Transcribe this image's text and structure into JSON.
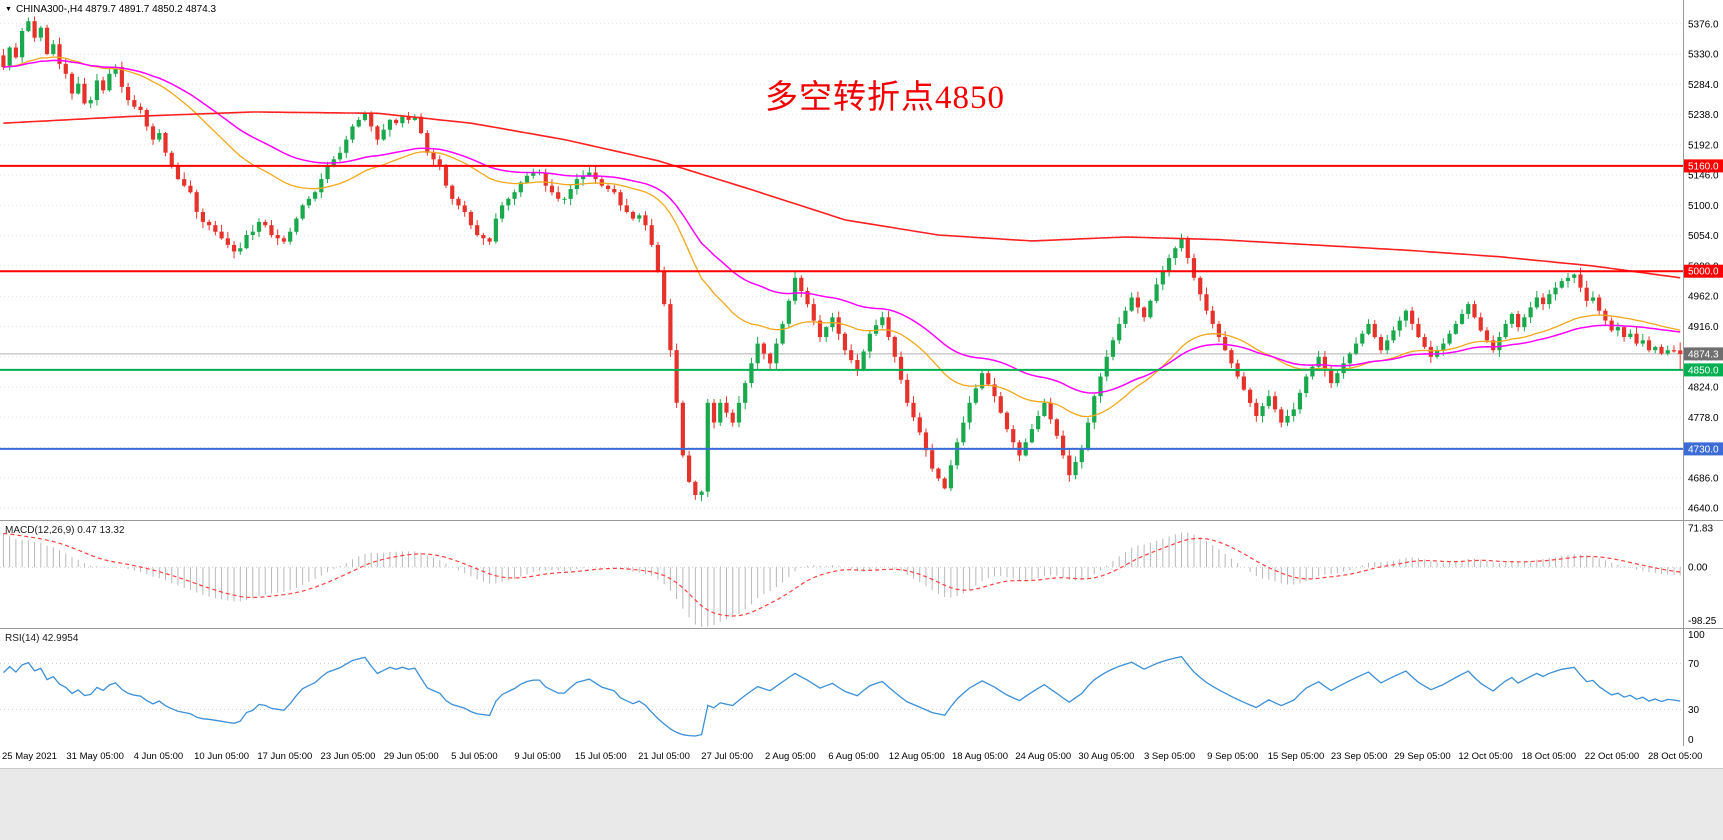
{
  "header": {
    "collapse_icon": "▼",
    "symbol_line": "CHINA300-,H4 4879.7 4891.7 4850.2 4874.3"
  },
  "annotation": {
    "text": "多空转折点4850",
    "color": "#f20000"
  },
  "colors": {
    "up": "#19a84c",
    "down": "#e5332b",
    "grid": "#e2e2e2",
    "panel_border": "#999999",
    "axis_text": "#000000",
    "current_line": "#b0b0b0",
    "current_label_bg": "#6f6f6f"
  },
  "chart_data": {
    "type": "candlestick",
    "symbol": "CHINA300-",
    "timeframe": "H4",
    "quote": {
      "open": 4879.7,
      "high": 4891.7,
      "low": 4850.2,
      "close": 4874.3
    },
    "ylim": [
      4640,
      5376
    ],
    "y_ticks": [
      5376,
      5330,
      5284,
      5238,
      5192,
      5146,
      5100,
      5054,
      5008,
      4962,
      4916,
      4870,
      4824,
      4778,
      4732,
      4686,
      4640
    ],
    "x_labels": [
      "25 May 2021",
      "31 May 05:00",
      "4 Jun 05:00",
      "10 Jun 05:00",
      "17 Jun 05:00",
      "23 Jun 05:00",
      "29 Jun 05:00",
      "5 Jul 05:00",
      "9 Jul 05:00",
      "15 Jul 05:00",
      "21 Jul 05:00",
      "27 Jul 05:00",
      "2 Aug 05:00",
      "6 Aug 05:00",
      "12 Aug 05:00",
      "18 Aug 05:00",
      "24 Aug 05:00",
      "30 Aug 05:00",
      "3 Sep 05:00",
      "9 Sep 05:00",
      "15 Sep 05:00",
      "23 Sep 05:00",
      "29 Sep 05:00",
      "12 Oct 05:00",
      "18 Oct 05:00",
      "22 Oct 05:00",
      "28 Oct 05:00"
    ],
    "closes": [
      5310,
      5340,
      5325,
      5365,
      5380,
      5355,
      5370,
      5330,
      5345,
      5315,
      5300,
      5270,
      5285,
      5255,
      5260,
      5290,
      5275,
      5300,
      5310,
      5280,
      5260,
      5250,
      5245,
      5220,
      5200,
      5210,
      5180,
      5160,
      5140,
      5130,
      5120,
      5090,
      5075,
      5070,
      5060,
      5050,
      5040,
      5030,
      5035,
      5055,
      5060,
      5075,
      5070,
      5055,
      5050,
      5045,
      5060,
      5080,
      5100,
      5110,
      5120,
      5140,
      5160,
      5170,
      5180,
      5200,
      5220,
      5230,
      5240,
      5220,
      5200,
      5215,
      5230,
      5225,
      5235,
      5230,
      5235,
      5210,
      5180,
      5170,
      5160,
      5130,
      5110,
      5100,
      5090,
      5070,
      5055,
      5050,
      5045,
      5080,
      5100,
      5110,
      5120,
      5135,
      5145,
      5150,
      5150,
      5130,
      5120,
      5110,
      5110,
      5125,
      5140,
      5145,
      5150,
      5140,
      5130,
      5125,
      5120,
      5100,
      5090,
      5080,
      5085,
      5070,
      5040,
      5000,
      4950,
      4880,
      4800,
      4720,
      4680,
      4660,
      4665,
      4800,
      4770,
      4800,
      4785,
      4770,
      4800,
      4830,
      4860,
      4890,
      4875,
      4860,
      4890,
      4920,
      4955,
      4990,
      4970,
      4950,
      4925,
      4900,
      4915,
      4930,
      4905,
      4880,
      4865,
      4850,
      4878,
      4905,
      4918,
      4930,
      4900,
      4870,
      4835,
      4800,
      4778,
      4755,
      4728,
      4700,
      4685,
      4670,
      4705,
      4740,
      4770,
      4800,
      4822,
      4845,
      4828,
      4810,
      4785,
      4760,
      4740,
      4720,
      4740,
      4760,
      4780,
      4800,
      4775,
      4750,
      4720,
      4690,
      4710,
      4730,
      4770,
      4810,
      4840,
      4870,
      4895,
      4920,
      4940,
      4960,
      4945,
      4930,
      4955,
      4980,
      5000,
      5020,
      5035,
      5050,
      5020,
      4990,
      4965,
      4940,
      4920,
      4900,
      4880,
      4860,
      4840,
      4820,
      4800,
      4780,
      4795,
      4810,
      4790,
      4770,
      4780,
      4790,
      4815,
      4840,
      4855,
      4870,
      4850,
      4830,
      4845,
      4860,
      4875,
      4890,
      4905,
      4920,
      4900,
      4880,
      4895,
      4910,
      4925,
      4940,
      4920,
      4900,
      4885,
      4870,
      4880,
      4890,
      4905,
      4920,
      4935,
      4950,
      4930,
      4910,
      4895,
      4880,
      4900,
      4920,
      4935,
      4915,
      4930,
      4945,
      4960,
      4950,
      4965,
      4975,
      4985,
      4990,
      4995,
      4975,
      4955,
      4960,
      4940,
      4925,
      4910,
      4915,
      4900,
      4905,
      4890,
      4895,
      4880,
      4885,
      4875,
      4880,
      4878,
      4874.3
    ],
    "hlines": [
      {
        "price": 5160,
        "color": "#fe0000",
        "type": "resistance"
      },
      {
        "price": 5000,
        "color": "#fe0000",
        "type": "resistance"
      },
      {
        "price": 4850,
        "color": "#00b050",
        "type": "support"
      },
      {
        "price": 4730,
        "color": "#3b6bd6",
        "type": "support"
      }
    ],
    "current_price": {
      "value": 4874.3
    },
    "ma": {
      "fast_period": 34,
      "fast_color": "#f2a71b",
      "mid_period": 55,
      "mid_color": "#ff00ff",
      "slow_color": "#ff2020",
      "slow_anchors": [
        [
          0,
          5225
        ],
        [
          20,
          5235
        ],
        [
          40,
          5242
        ],
        [
          60,
          5240
        ],
        [
          75,
          5225
        ],
        [
          90,
          5200
        ],
        [
          105,
          5168
        ],
        [
          120,
          5124
        ],
        [
          135,
          5078
        ],
        [
          150,
          5055
        ],
        [
          165,
          5046
        ],
        [
          180,
          5052
        ],
        [
          195,
          5048
        ],
        [
          210,
          5040
        ],
        [
          225,
          5032
        ],
        [
          240,
          5022
        ],
        [
          255,
          5008
        ],
        [
          269,
          4990
        ]
      ]
    },
    "macd": {
      "label": "MACD(12,26,9) 0.47 13.32",
      "fast": 12,
      "slow": 26,
      "signal": 9,
      "ticks": [
        71.83,
        0,
        -98.25
      ],
      "ylim": [
        -110,
        85
      ],
      "hist_color": "#b8b8b8",
      "signal_color": "#ff4040"
    },
    "rsi": {
      "label": "RSI(14) 42.9954",
      "period": 14,
      "value": 42.9954,
      "ticks": [
        100,
        70,
        30,
        0
      ],
      "levels": [
        70,
        30
      ],
      "color": "#3c8fd6"
    }
  }
}
